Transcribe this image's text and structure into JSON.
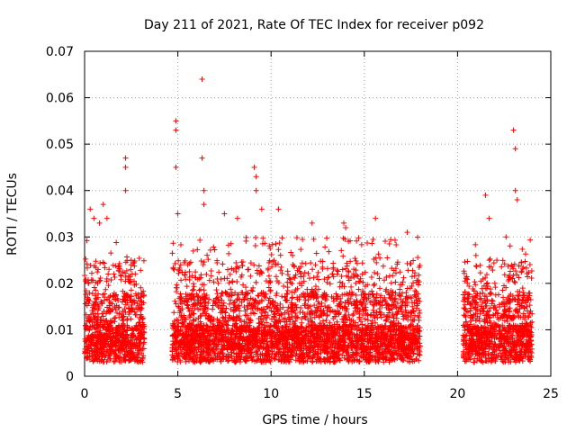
{
  "chart_data": {
    "type": "scatter",
    "title": "Day 211 of 2021, Rate Of TEC Index for receiver p092",
    "xlabel": "GPS time / hours",
    "ylabel": "ROTI / TECUs",
    "xlim": [
      0,
      25
    ],
    "ylim": [
      0,
      0.07
    ],
    "x_ticks": [
      0,
      5,
      10,
      15,
      20,
      25
    ],
    "y_ticks": [
      0,
      0.01,
      0.02,
      0.03,
      0.04,
      0.05,
      0.06,
      0.07
    ],
    "x_tick_labels": [
      "0",
      "5",
      "10",
      "15",
      "20",
      "25"
    ],
    "y_tick_labels": [
      "0",
      "0.01",
      "0.02",
      "0.03",
      "0.04",
      "0.05",
      "0.06",
      "0.07"
    ],
    "grid": true,
    "marker": "+",
    "color": "#ff0000",
    "series": [
      {
        "name": "ROTI",
        "segments": [
          {
            "x_start": 0.0,
            "x_end": 3.2
          },
          {
            "x_start": 4.7,
            "x_end": 18.0
          },
          {
            "x_start": 20.3,
            "x_end": 24.0
          }
        ],
        "x": [
          0.3,
          0.5,
          0.8,
          1.0,
          1.2,
          2.2,
          2.2,
          2.2,
          2.5,
          4.9,
          4.9,
          4.9,
          5.0,
          6.3,
          6.3,
          6.4,
          6.4,
          7.5,
          8.2,
          9.1,
          9.2,
          9.2,
          9.5,
          10.4,
          12.2,
          13.9,
          14.0,
          15.6,
          17.3,
          21.5,
          21.7,
          22.6,
          23.0,
          23.1,
          23.1,
          23.2
        ],
        "y": [
          0.036,
          0.034,
          0.033,
          0.037,
          0.034,
          0.047,
          0.045,
          0.04,
          0.025,
          0.055,
          0.053,
          0.045,
          0.035,
          0.064,
          0.047,
          0.04,
          0.037,
          0.035,
          0.034,
          0.045,
          0.043,
          0.04,
          0.036,
          0.036,
          0.033,
          0.033,
          0.032,
          0.034,
          0.031,
          0.039,
          0.034,
          0.03,
          0.053,
          0.049,
          0.04,
          0.038
        ]
      }
    ]
  }
}
